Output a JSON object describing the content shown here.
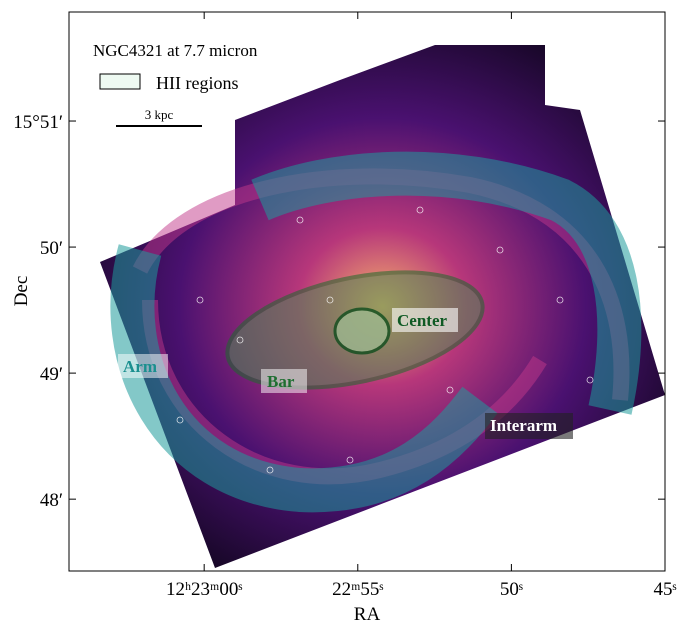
{
  "chart_data": {
    "type": "image",
    "title": "NGC4321 at 7.7 micron",
    "legend": {
      "entries": [
        "HII regions"
      ],
      "position": "upper left"
    },
    "scale_bar": "3 kpc",
    "region_labels": [
      "Center",
      "Bar",
      "Arm",
      "Interarm"
    ],
    "xlabel": "RA",
    "ylabel": "Dec",
    "xlim": [
      64.4,
      45
    ],
    "xticks": [
      {
        "value": 60,
        "label": "12ʰ23ᵐ00ˢ"
      },
      {
        "value": 55,
        "label": "22ᵐ55ˢ"
      },
      {
        "value": 50,
        "label": "50ˢ"
      },
      {
        "value": 45,
        "label": "45ˢ"
      }
    ],
    "ylim": [
      47.43,
      51.865
    ],
    "yticks": [
      {
        "value": 51,
        "label": "15°51′"
      },
      {
        "value": 50,
        "label": "50′"
      },
      {
        "value": 49,
        "label": "49′"
      },
      {
        "value": 48,
        "label": "48′"
      }
    ]
  }
}
